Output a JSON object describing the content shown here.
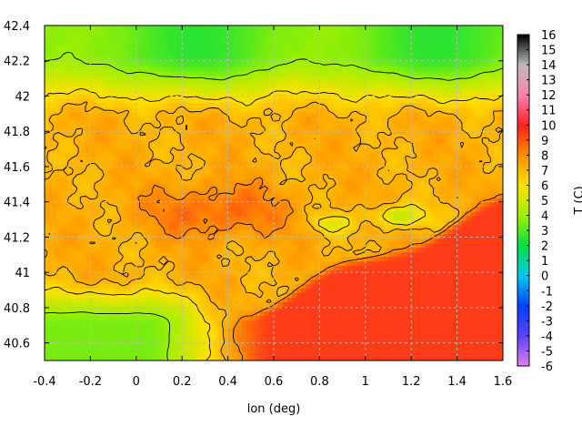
{
  "chart_data": {
    "type": "heatmap",
    "title": "",
    "xlabel": "lon (deg)",
    "ylabel": "",
    "colorbar_label": "T (C)",
    "xlim": [
      -0.4,
      1.6
    ],
    "ylim": [
      40.5,
      42.4
    ],
    "x_ticks": [
      "-0.4",
      "-0.2",
      "0",
      "0.2",
      "0.4",
      "0.6",
      "0.8",
      "1",
      "1.2",
      "1.4",
      "1.6"
    ],
    "y_ticks": [
      "40.6",
      "40.8",
      "41",
      "41.2",
      "41.4",
      "41.6",
      "41.8",
      "42",
      "42.2",
      "42.4"
    ],
    "colorbar_range": [
      -6,
      16
    ],
    "colorbar_ticks": [
      "16",
      "15",
      "14",
      "13",
      "12",
      "11",
      "10",
      "9",
      "8",
      "7",
      "6",
      "5",
      "4",
      "3",
      "2",
      "1",
      "0",
      "-1",
      "-2",
      "-3",
      "-4",
      "-5",
      "-6"
    ],
    "grid": true,
    "colormap_stops": [
      {
        "value": -6,
        "color": "#e080f0"
      },
      {
        "value": -4,
        "color": "#6040ff"
      },
      {
        "value": -2,
        "color": "#0040ff"
      },
      {
        "value": 0,
        "color": "#00c8f0"
      },
      {
        "value": 2,
        "color": "#00e040"
      },
      {
        "value": 4,
        "color": "#a0f000"
      },
      {
        "value": 6,
        "color": "#ffe000"
      },
      {
        "value": 8,
        "color": "#ff9000"
      },
      {
        "value": 10,
        "color": "#ff2020"
      },
      {
        "value": 12,
        "color": "#ff80b0"
      },
      {
        "value": 14,
        "color": "#bbbbbb"
      },
      {
        "value": 16,
        "color": "#000000"
      }
    ],
    "field_approximation": {
      "sea_level_temperature": 9.5,
      "inland_temperature": 7.2,
      "northern_mountain_temperature": 2.5,
      "southwest_hills_temperature": 3.5,
      "contour_levels": [
        2,
        4,
        6,
        7,
        8,
        10
      ]
    }
  }
}
